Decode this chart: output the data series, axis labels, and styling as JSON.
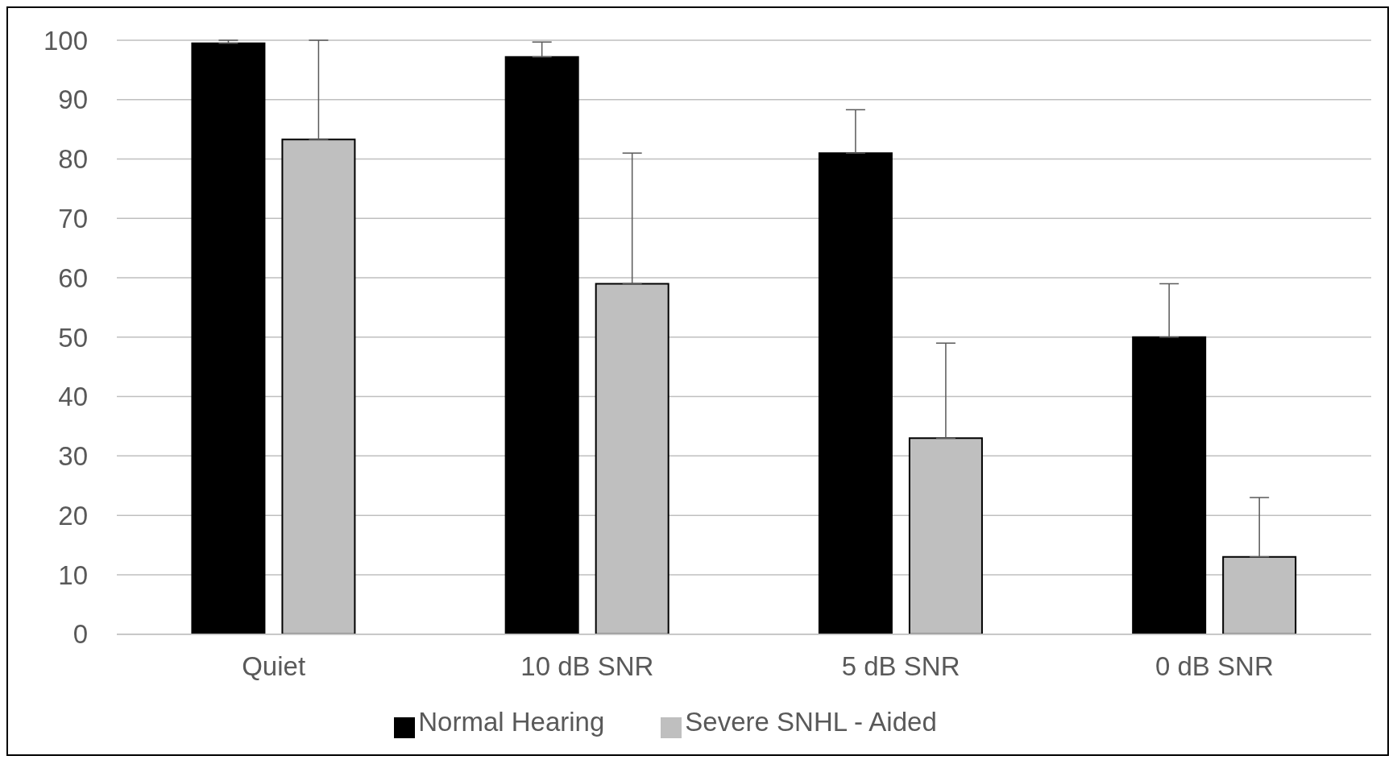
{
  "chart_data": {
    "type": "bar",
    "categories": [
      "Quiet",
      "10 dB SNR",
      "5 dB SNR",
      "0 dB SNR"
    ],
    "series": [
      {
        "name": "Normal Hearing",
        "color": "#000000",
        "values": [
          99.5,
          97.2,
          81,
          50
        ],
        "errors": [
          [
            99.5,
            100
          ],
          [
            97.2,
            99.7
          ],
          [
            81,
            88.3
          ],
          [
            50,
            59
          ]
        ]
      },
      {
        "name": "Severe SNHL - Aided",
        "color": "#bfbfbf",
        "values": [
          83.3,
          59,
          33,
          13
        ],
        "errors": [
          [
            83.3,
            100
          ],
          [
            59,
            81
          ],
          [
            33,
            49
          ],
          [
            13,
            23
          ]
        ]
      }
    ],
    "ylim": [
      0,
      100
    ],
    "yticks": [
      0,
      10,
      20,
      30,
      40,
      50,
      60,
      70,
      80,
      90,
      100
    ],
    "grid": "y",
    "legend": "bottom"
  }
}
